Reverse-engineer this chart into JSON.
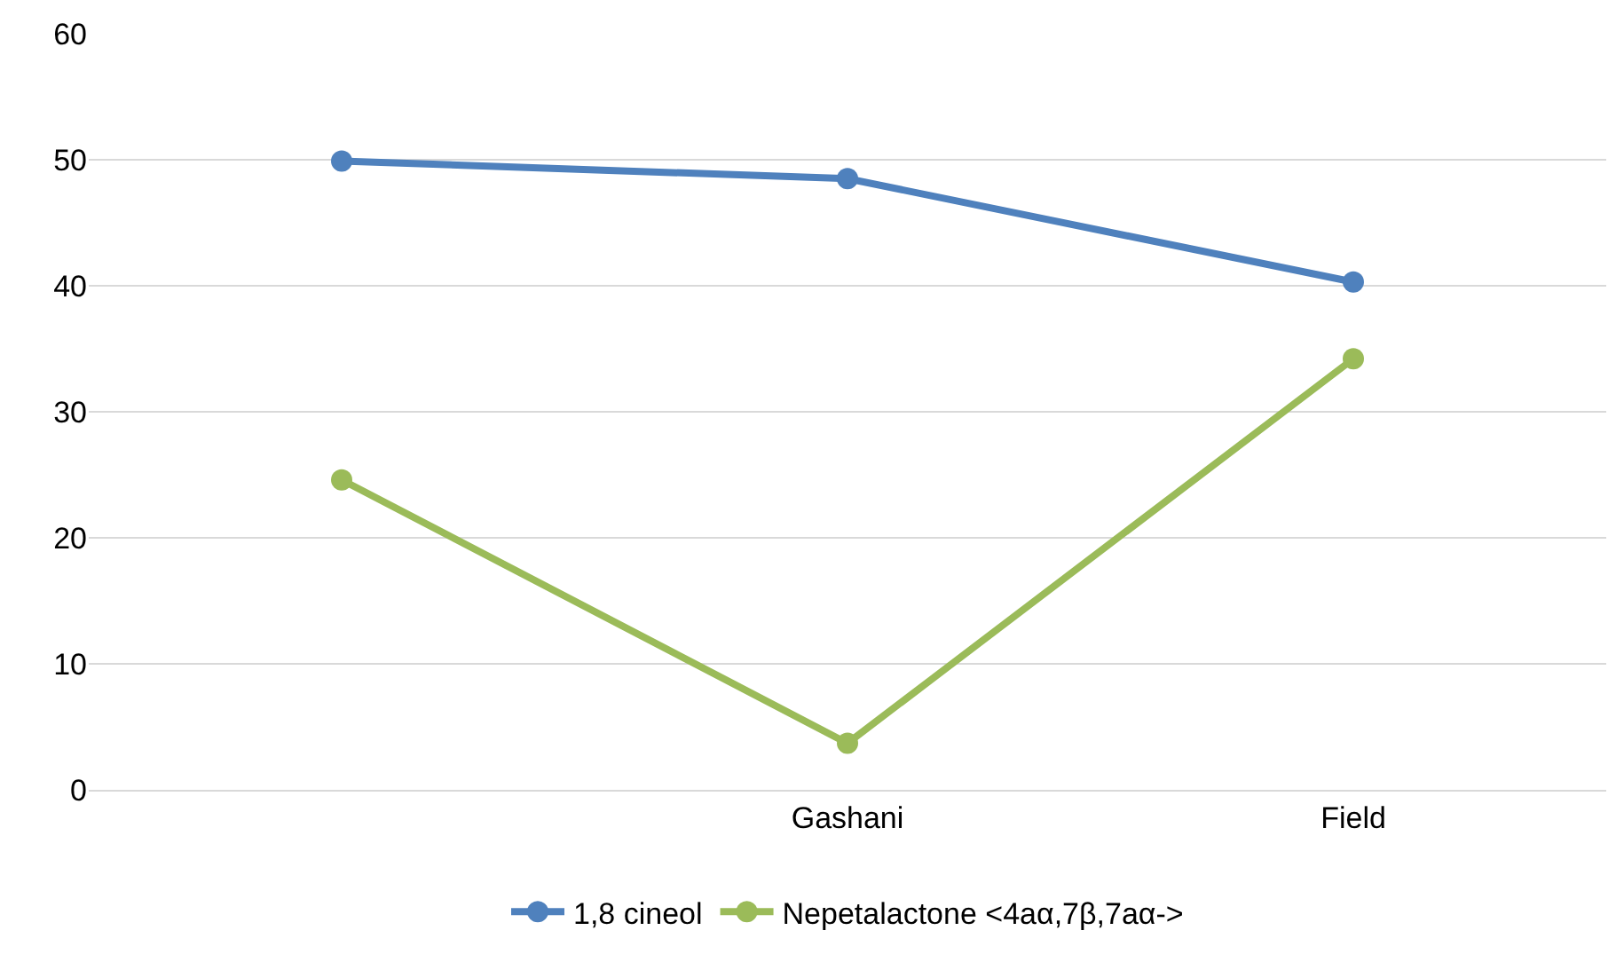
{
  "chart_data": {
    "type": "line",
    "categories": [
      null,
      "Gashani",
      "Field"
    ],
    "series": [
      {
        "name": "1,8 cineol",
        "color": "#4f81bd",
        "values": [
          49.9,
          48.5,
          40.3
        ]
      },
      {
        "name": "Nepetalactone <4aα,7β,7aα->",
        "color": "#9bbb59",
        "values": [
          24.6,
          3.7,
          34.2
        ]
      }
    ],
    "ylim": [
      0,
      60
    ],
    "yticks": [
      0,
      10,
      20,
      30,
      40,
      50,
      60
    ],
    "grid": "y",
    "legend": "bottom",
    "marker": "circle",
    "line_style": "solid"
  }
}
